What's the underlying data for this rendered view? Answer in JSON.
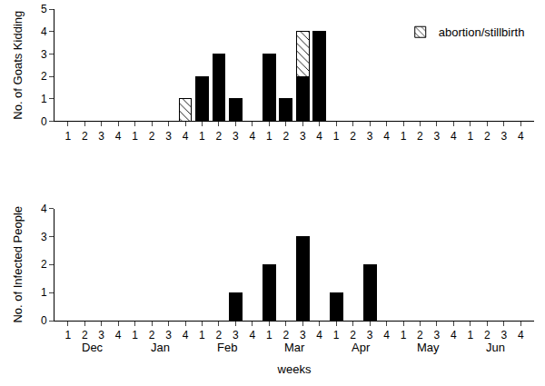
{
  "chart_data": [
    {
      "type": "bar",
      "ylabel": "No. of Goats Kidding",
      "categories": [
        "1",
        "2",
        "3",
        "4",
        "1",
        "2",
        "3",
        "4",
        "1",
        "2",
        "3",
        "4",
        "1",
        "2",
        "3",
        "4",
        "1",
        "2",
        "3",
        "4",
        "1",
        "2",
        "3",
        "4",
        "1",
        "2",
        "3",
        "4"
      ],
      "series": [
        {
          "color": "#000000",
          "values": [
            0,
            0,
            0,
            0,
            0,
            0,
            0,
            0,
            2,
            3,
            1,
            0,
            3,
            1,
            2,
            4,
            0,
            0,
            0,
            0,
            0,
            0,
            0,
            0,
            0,
            0,
            0,
            0
          ]
        },
        {
          "name": "abortion/stillbirth",
          "color": "#ffffff",
          "marker": "hatched",
          "values": [
            0,
            0,
            0,
            0,
            0,
            0,
            0,
            1,
            0,
            0,
            0,
            0,
            0,
            0,
            2,
            0,
            0,
            0,
            0,
            0,
            0,
            0,
            0,
            0,
            0,
            0,
            0,
            0
          ]
        }
      ],
      "stacked": true,
      "legend": "upper right",
      "ylim": [
        0,
        5
      ],
      "yticks": [
        0,
        1,
        2,
        3,
        4,
        5
      ]
    },
    {
      "type": "bar",
      "ylabel": "No. of Infected People",
      "xlabel": "weeks",
      "categories": [
        "1",
        "2",
        "3",
        "4",
        "1",
        "2",
        "3",
        "4",
        "1",
        "2",
        "3",
        "4",
        "1",
        "2",
        "3",
        "4",
        "1",
        "2",
        "3",
        "4",
        "1",
        "2",
        "3",
        "4",
        "1",
        "2",
        "3",
        "4"
      ],
      "values": [
        0,
        0,
        0,
        0,
        0,
        0,
        0,
        0,
        0,
        0,
        1,
        0,
        2,
        0,
        3,
        0,
        1,
        0,
        2,
        0,
        0,
        0,
        0,
        0,
        0,
        0,
        0,
        0
      ],
      "color": "#000000",
      "group_labels": [
        "Dec",
        "Jan",
        "Feb",
        "Mar",
        "Apr",
        "May",
        "Jun"
      ],
      "ylim": [
        0,
        4
      ],
      "yticks": [
        0,
        1,
        2,
        3,
        4
      ]
    }
  ]
}
